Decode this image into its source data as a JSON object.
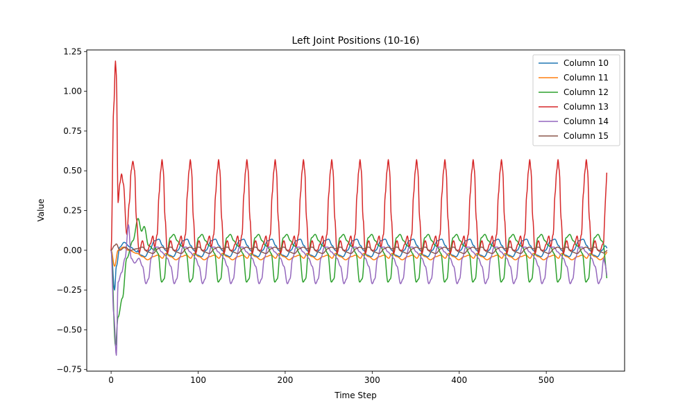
{
  "chart_data": {
    "type": "line",
    "title": "Left Joint Positions (10-16)",
    "xlabel": "Time Step",
    "ylabel": "Value",
    "xlim": [
      -28,
      590
    ],
    "ylim": [
      -0.76,
      1.26
    ],
    "xticks": [
      0,
      100,
      200,
      300,
      400,
      500
    ],
    "xtick_labels": [
      "0",
      "100",
      "200",
      "300",
      "400",
      "500"
    ],
    "yticks": [
      -0.75,
      -0.5,
      -0.25,
      0.0,
      0.25,
      0.5,
      0.75,
      1.0,
      1.25
    ],
    "ytick_labels": [
      "−0.75",
      "−0.50",
      "−0.25",
      "0.00",
      "0.25",
      "0.50",
      "0.75",
      "1.00",
      "1.25"
    ],
    "grid": false,
    "legend_position": "top-right",
    "period_timesteps": 32.5,
    "n_points": 570,
    "series": [
      {
        "name": "Column 10",
        "color": "#1f77b4",
        "initial": [
          [
            0,
            0.0
          ],
          [
            4,
            -0.25
          ],
          [
            6,
            -0.1
          ],
          [
            10,
            0.02
          ],
          [
            15,
            0.05
          ],
          [
            22,
            0.02
          ],
          [
            30,
            -0.01
          ]
        ],
        "cycle": [
          [
            0,
            0.0
          ],
          [
            4,
            -0.03
          ],
          [
            9,
            -0.04
          ],
          [
            14,
            0.0
          ],
          [
            20,
            0.06
          ],
          [
            25,
            0.07
          ],
          [
            29,
            0.03
          ],
          [
            32.5,
            0.0
          ]
        ],
        "last_value": 0.01
      },
      {
        "name": "Column 11",
        "color": "#ff7f0e",
        "initial": [
          [
            0,
            0.0
          ],
          [
            4,
            -0.1
          ],
          [
            8,
            0.0
          ],
          [
            14,
            0.02
          ],
          [
            20,
            0.0
          ],
          [
            30,
            -0.02
          ]
        ],
        "cycle": [
          [
            0,
            -0.02
          ],
          [
            6,
            -0.04
          ],
          [
            12,
            -0.06
          ],
          [
            18,
            -0.04
          ],
          [
            24,
            -0.03
          ],
          [
            29,
            -0.05
          ],
          [
            32.5,
            -0.02
          ]
        ],
        "last_value": -0.01
      },
      {
        "name": "Column 12",
        "color": "#2ca02c",
        "initial": [
          [
            0,
            0.0
          ],
          [
            5,
            -0.6
          ],
          [
            8,
            -0.42
          ],
          [
            13,
            -0.3
          ],
          [
            18,
            -0.05
          ],
          [
            25,
            0.06
          ],
          [
            31,
            0.2
          ],
          [
            35,
            0.12
          ],
          [
            38,
            0.15
          ],
          [
            43,
            0.03
          ],
          [
            50,
            0.0
          ]
        ],
        "cycle": [
          [
            0,
            0.02
          ],
          [
            4,
            -0.02
          ],
          [
            8,
            -0.2
          ],
          [
            11,
            -0.18
          ],
          [
            14,
            -0.02
          ],
          [
            18,
            0.08
          ],
          [
            22,
            0.1
          ],
          [
            26,
            0.06
          ],
          [
            30,
            0.03
          ],
          [
            32.5,
            0.02
          ]
        ],
        "last_value": -0.2
      },
      {
        "name": "Column 13",
        "color": "#d62728",
        "initial": [
          [
            0,
            0.0
          ],
          [
            3,
            0.9
          ],
          [
            5,
            1.19
          ],
          [
            6,
            1.1
          ],
          [
            8,
            0.3
          ],
          [
            10,
            0.42
          ],
          [
            12,
            0.48
          ],
          [
            14,
            0.42
          ],
          [
            18,
            0.1
          ],
          [
            21,
            0.3
          ],
          [
            23,
            0.5
          ],
          [
            25,
            0.56
          ],
          [
            27,
            0.5
          ],
          [
            29,
            0.2
          ],
          [
            32,
            0.0
          ]
        ],
        "cycle": [
          [
            0,
            -0.02
          ],
          [
            4,
            0.06
          ],
          [
            7,
            0.0
          ],
          [
            10,
            0.0
          ],
          [
            13,
            0.04
          ],
          [
            16,
            0.09
          ],
          [
            18,
            0.02
          ],
          [
            21,
            0.1
          ],
          [
            23,
            0.35
          ],
          [
            25,
            0.5
          ],
          [
            26.5,
            0.57
          ],
          [
            28,
            0.5
          ],
          [
            30,
            0.2
          ],
          [
            32.5,
            -0.02
          ]
        ],
        "last_value": 0.55
      },
      {
        "name": "Column 14",
        "color": "#9467bd",
        "initial": [
          [
            0,
            0.0
          ],
          [
            3,
            -0.4
          ],
          [
            6,
            -0.66
          ],
          [
            8,
            -0.2
          ],
          [
            12,
            -0.14
          ],
          [
            16,
            -0.05
          ],
          [
            20,
            0.16
          ],
          [
            23,
            -0.05
          ],
          [
            27,
            -0.08
          ],
          [
            32,
            -0.05
          ]
        ],
        "cycle": [
          [
            0,
            -0.05
          ],
          [
            4,
            -0.1
          ],
          [
            8,
            -0.21
          ],
          [
            11,
            -0.18
          ],
          [
            14,
            -0.05
          ],
          [
            18,
            0.02
          ],
          [
            22,
            0.02
          ],
          [
            26,
            -0.01
          ],
          [
            30,
            -0.03
          ],
          [
            32.5,
            -0.05
          ]
        ],
        "last_value": -0.18
      },
      {
        "name": "Column 15",
        "color": "#8c564b",
        "initial": [
          [
            0,
            0.0
          ],
          [
            4,
            0.03
          ],
          [
            6,
            0.04
          ],
          [
            10,
            0.0
          ],
          [
            16,
            0.02
          ],
          [
            22,
            0.0
          ],
          [
            30,
            0.01
          ]
        ],
        "cycle": [
          [
            0,
            0.01
          ],
          [
            6,
            0.02
          ],
          [
            12,
            -0.01
          ],
          [
            18,
            -0.02
          ],
          [
            24,
            0.01
          ],
          [
            28,
            0.02
          ],
          [
            32.5,
            0.01
          ]
        ],
        "last_value": 0.0
      }
    ]
  }
}
